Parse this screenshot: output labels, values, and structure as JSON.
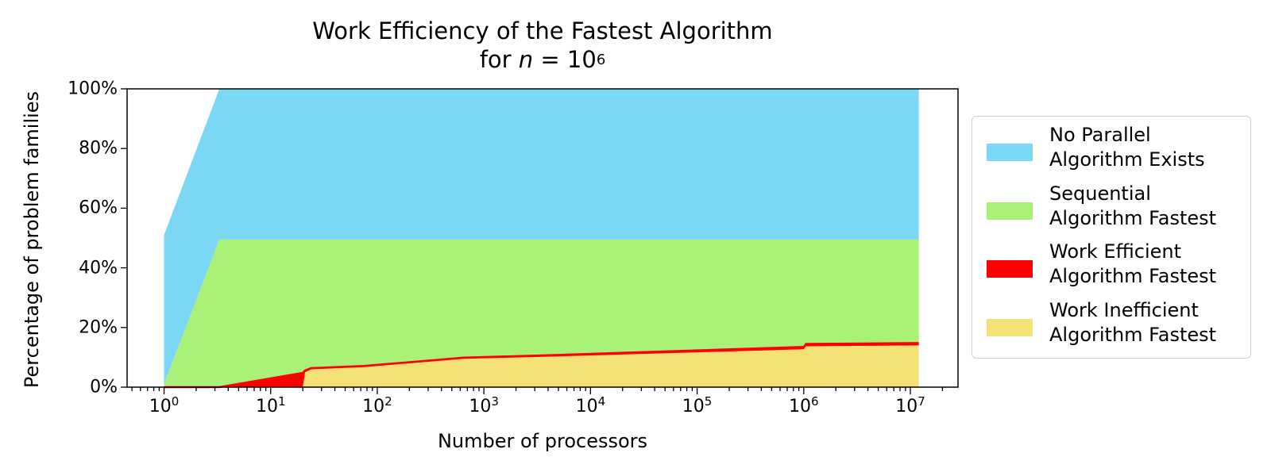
{
  "chart_data": {
    "type": "area",
    "title_line1": "Work Efficiency of the Fastest Algorithm",
    "title_line2_prefix": "for ",
    "title_line2_var": "n",
    "title_line2_eq": " = 10",
    "title_line2_exp": "6",
    "xlabel": "Number of processors",
    "ylabel": "Percentage of problem families",
    "xscale": "log",
    "xlim": [
      0.45,
      28000000
    ],
    "ylim": [
      0,
      100
    ],
    "grid": false,
    "legend_position": "outside-right",
    "x_ticks": [
      {
        "base": "10",
        "exp": "0",
        "value": 1
      },
      {
        "base": "10",
        "exp": "1",
        "value": 10
      },
      {
        "base": "10",
        "exp": "2",
        "value": 100
      },
      {
        "base": "10",
        "exp": "3",
        "value": 1000
      },
      {
        "base": "10",
        "exp": "4",
        "value": 10000
      },
      {
        "base": "10",
        "exp": "5",
        "value": 100000
      },
      {
        "base": "10",
        "exp": "6",
        "value": 1000000
      },
      {
        "base": "10",
        "exp": "7",
        "value": 10000000
      }
    ],
    "y_ticks": [
      {
        "label": "0%",
        "value": 0
      },
      {
        "label": "20%",
        "value": 20
      },
      {
        "label": "40%",
        "value": 40
      },
      {
        "label": "60%",
        "value": 60
      },
      {
        "label": "80%",
        "value": 80
      },
      {
        "label": "100%",
        "value": 100
      }
    ],
    "x": [
      1,
      3.3,
      20,
      21,
      24,
      75,
      650,
      4000,
      1000000,
      1050000,
      12000000
    ],
    "series": [
      {
        "name_lines": [
          "Work Inefficient",
          "Algorithm Fastest"
        ],
        "color": "#f4e277",
        "values": [
          0.0,
          0.0,
          0.0,
          5.0,
          6.0,
          6.7,
          9.5,
          10.2,
          12.7,
          13.7,
          14.0
        ]
      },
      {
        "name_lines": [
          "Work Efficient",
          "Algorithm Fastest"
        ],
        "color": "#ff0000",
        "values": [
          0.0,
          0.0,
          4.8,
          0.6,
          0.4,
          0.4,
          0.4,
          0.5,
          0.8,
          0.8,
          0.8
        ]
      },
      {
        "name_lines": [
          "Sequential",
          "Algorithm Fastest"
        ],
        "color": "#a9f277",
        "values": [
          1.0,
          49.5,
          44.7,
          43.9,
          43.1,
          42.4,
          39.6,
          38.8,
          36.0,
          35.0,
          34.7
        ]
      },
      {
        "name_lines": [
          "No Parallel",
          "Algorithm Exists"
        ],
        "color": "#7bd7f3",
        "values": [
          50.0,
          50.5,
          50.5,
          50.5,
          50.5,
          50.5,
          50.5,
          50.5,
          50.5,
          50.5,
          50.5
        ]
      }
    ],
    "legend_order": [
      3,
      2,
      1,
      0
    ]
  }
}
